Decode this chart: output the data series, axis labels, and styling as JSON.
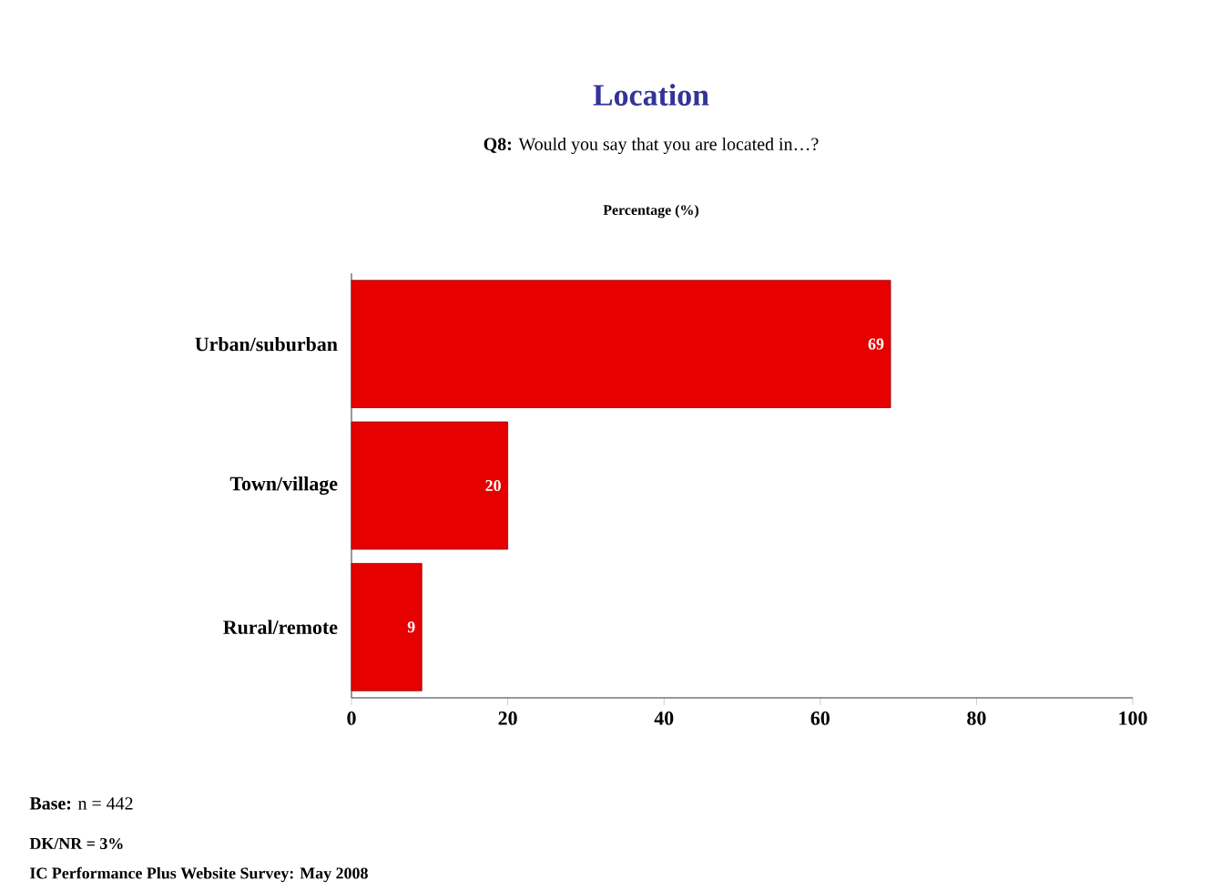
{
  "chart_data": {
    "type": "bar",
    "orientation": "horizontal",
    "title": "Location",
    "subtitle": "**Q8:** Would you say that you are located in…?",
    "xlabel": "Percentage (%)",
    "categories": [
      "Urban/suburban",
      "Town/village",
      "Rural/remote"
    ],
    "values": [
      69,
      20,
      9
    ],
    "color": "#e60000",
    "data_labels": true,
    "xlim": [
      0,
      100
    ],
    "xticks": [
      0,
      20,
      40,
      60,
      80,
      100
    ],
    "grid": false,
    "annotations": [
      "**Base:** n = 442",
      "DK/NR = 3%",
      "IC Performance Plus Website Survey: May 2008"
    ]
  }
}
